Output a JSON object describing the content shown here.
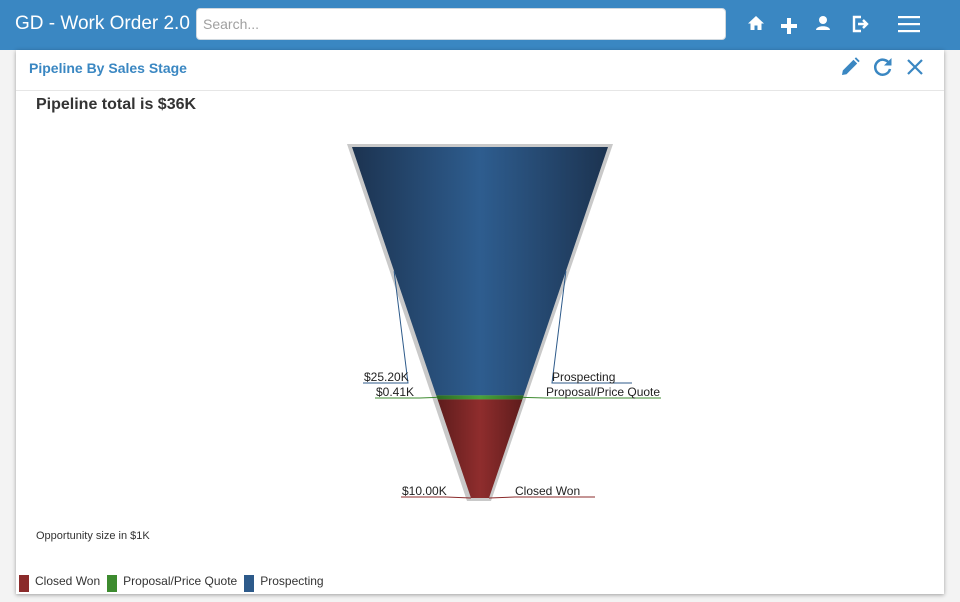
{
  "app": {
    "title": "GD - Work Order 2.0",
    "search_placeholder": "Search...",
    "nav_icons": [
      "home-icon",
      "plus-icon",
      "user-icon",
      "logout-icon",
      "menu-icon"
    ]
  },
  "panel": {
    "title": "Pipeline By Sales Stage",
    "header_icons": [
      "edit-icon",
      "refresh-icon",
      "close-icon"
    ],
    "total_text": "Pipeline total is $36K",
    "note": "Opportunity size in $1K"
  },
  "colors": {
    "topbar": "#3a87c2",
    "closed_won": "#8b2b2b",
    "proposal": "#3d8b2f",
    "prospecting": "#2d5a8a"
  },
  "chart_data": {
    "type": "funnel",
    "title": "Pipeline total is $36K",
    "unit": "$1K",
    "stages": [
      {
        "name": "Prospecting",
        "value": 25.2,
        "label": "$25.20K",
        "color": "#2d5a8a"
      },
      {
        "name": "Proposal/Price Quote",
        "value": 0.41,
        "label": "$0.41K",
        "color": "#3d8b2f"
      },
      {
        "name": "Closed Won",
        "value": 10.0,
        "label": "$10.00K",
        "color": "#8b2b2b"
      }
    ],
    "legend": {
      "placement": "bottom-left",
      "entries": [
        "Closed Won",
        "Proposal/Price Quote",
        "Prospecting"
      ]
    }
  }
}
